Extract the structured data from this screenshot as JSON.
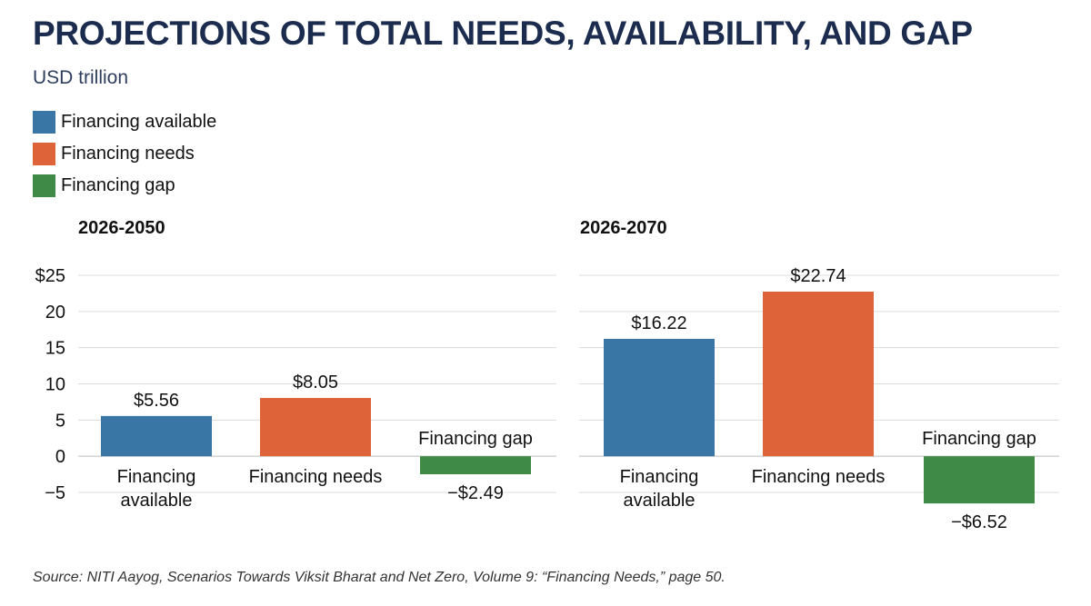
{
  "title": "PROJECTIONS OF TOTAL NEEDS, AVAILABILITY, AND GAP",
  "subtitle": "USD trillion",
  "legend": [
    {
      "label": "Financing available",
      "color": "#3a76a5"
    },
    {
      "label": "Financing needs",
      "color": "#de6339"
    },
    {
      "label": "Financing gap",
      "color": "#3f8a47"
    }
  ],
  "source": "Source: NITI Aayog, Scenarios Towards Viksit Bharat and Net Zero, Volume 9: “Financing Needs,” page 50.",
  "chart_data": [
    {
      "type": "bar",
      "title": "2026-2050",
      "categories": [
        "Financing available",
        "Financing needs",
        "Financing gap"
      ],
      "values": [
        5.56,
        8.05,
        -2.49
      ],
      "value_labels": [
        "$5.56",
        "$8.05",
        "−$2.49"
      ],
      "colors": [
        "#3a76a5",
        "#de6339",
        "#3f8a47"
      ],
      "ylim": [
        -5,
        25
      ],
      "yticks": [
        25,
        20,
        15,
        10,
        5,
        0,
        -5
      ],
      "ytick_labels": [
        "$25",
        "20",
        "15",
        "10",
        "5",
        "0",
        "−5"
      ],
      "grid": true
    },
    {
      "type": "bar",
      "title": "2026-2070",
      "categories": [
        "Financing available",
        "Financing needs",
        "Financing gap"
      ],
      "values": [
        16.22,
        22.74,
        -6.52
      ],
      "value_labels": [
        "$16.22",
        "$22.74",
        "−$6.52"
      ],
      "colors": [
        "#3a76a5",
        "#de6339",
        "#3f8a47"
      ],
      "ylim": [
        -5,
        25
      ],
      "grid": true
    }
  ]
}
